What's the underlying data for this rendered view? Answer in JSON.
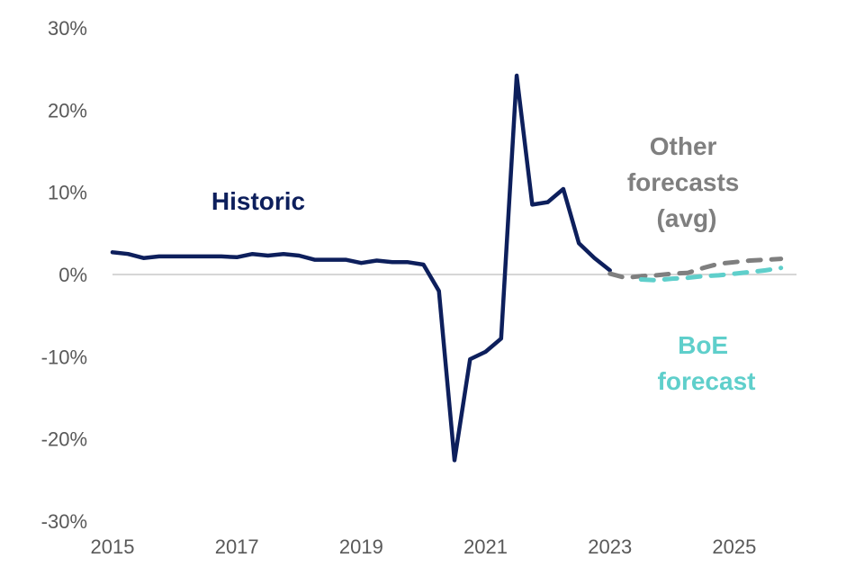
{
  "chart_data": {
    "type": "line",
    "title": "",
    "xlabel": "",
    "ylabel": "",
    "xlim": [
      2015,
      2026
    ],
    "ylim": [
      -30,
      30
    ],
    "x_ticks": [
      "2015",
      "2017",
      "2019",
      "2021",
      "2023",
      "2025"
    ],
    "y_ticks": [
      "30%",
      "20%",
      "10%",
      "0%",
      "-10%",
      "-20%",
      "-30%"
    ],
    "zero_line": true,
    "grid": false,
    "series": [
      {
        "name": "Historic",
        "style": "solid",
        "color": "#0d1f5c",
        "points": [
          [
            2015.0,
            2.7
          ],
          [
            2015.25,
            2.5
          ],
          [
            2015.5,
            2.0
          ],
          [
            2015.75,
            2.2
          ],
          [
            2016.0,
            2.2
          ],
          [
            2016.25,
            2.2
          ],
          [
            2016.5,
            2.2
          ],
          [
            2016.75,
            2.2
          ],
          [
            2017.0,
            2.1
          ],
          [
            2017.25,
            2.5
          ],
          [
            2017.5,
            2.3
          ],
          [
            2017.75,
            2.5
          ],
          [
            2018.0,
            2.3
          ],
          [
            2018.25,
            1.8
          ],
          [
            2018.5,
            1.8
          ],
          [
            2018.75,
            1.8
          ],
          [
            2019.0,
            1.4
          ],
          [
            2019.25,
            1.7
          ],
          [
            2019.5,
            1.5
          ],
          [
            2019.75,
            1.5
          ],
          [
            2020.0,
            1.2
          ],
          [
            2020.25,
            -2.0
          ],
          [
            2020.5,
            -22.6
          ],
          [
            2020.75,
            -10.3
          ],
          [
            2021.0,
            -9.4
          ],
          [
            2021.25,
            -7.8
          ],
          [
            2021.5,
            24.2
          ],
          [
            2021.75,
            8.5
          ],
          [
            2022.0,
            8.8
          ],
          [
            2022.25,
            10.4
          ],
          [
            2022.5,
            3.8
          ],
          [
            2022.75,
            2.0
          ],
          [
            2023.0,
            0.5
          ]
        ]
      },
      {
        "name": "Other forecasts (avg)",
        "style": "dashed",
        "color": "#7f7f7f",
        "points": [
          [
            2023.0,
            0.1
          ],
          [
            2023.25,
            -0.4
          ],
          [
            2023.5,
            -0.2
          ],
          [
            2023.75,
            -0.1
          ],
          [
            2024.0,
            0.1
          ],
          [
            2024.25,
            0.2
          ],
          [
            2024.5,
            0.8
          ],
          [
            2024.75,
            1.3
          ],
          [
            2025.0,
            1.5
          ],
          [
            2025.25,
            1.7
          ],
          [
            2025.5,
            1.8
          ],
          [
            2025.75,
            1.9
          ]
        ]
      },
      {
        "name": "BoE forecast",
        "style": "dashed",
        "color": "#5fcfcb",
        "points": [
          [
            2023.5,
            -0.6
          ],
          [
            2023.75,
            -0.7
          ],
          [
            2024.0,
            -0.5
          ],
          [
            2024.25,
            -0.4
          ],
          [
            2024.5,
            -0.2
          ],
          [
            2024.75,
            -0.1
          ],
          [
            2025.0,
            0.1
          ],
          [
            2025.25,
            0.3
          ],
          [
            2025.5,
            0.5
          ],
          [
            2025.75,
            0.8
          ]
        ]
      }
    ],
    "annotations": {
      "historic": {
        "lines": [
          "Historic"
        ],
        "color": "#0d1f5c"
      },
      "other": {
        "lines": [
          "Other",
          "forecasts",
          "(avg)"
        ],
        "color": "#7f7f7f"
      },
      "boe": {
        "lines": [
          "BoE",
          "forecast"
        ],
        "color": "#5fcfcb"
      }
    }
  }
}
